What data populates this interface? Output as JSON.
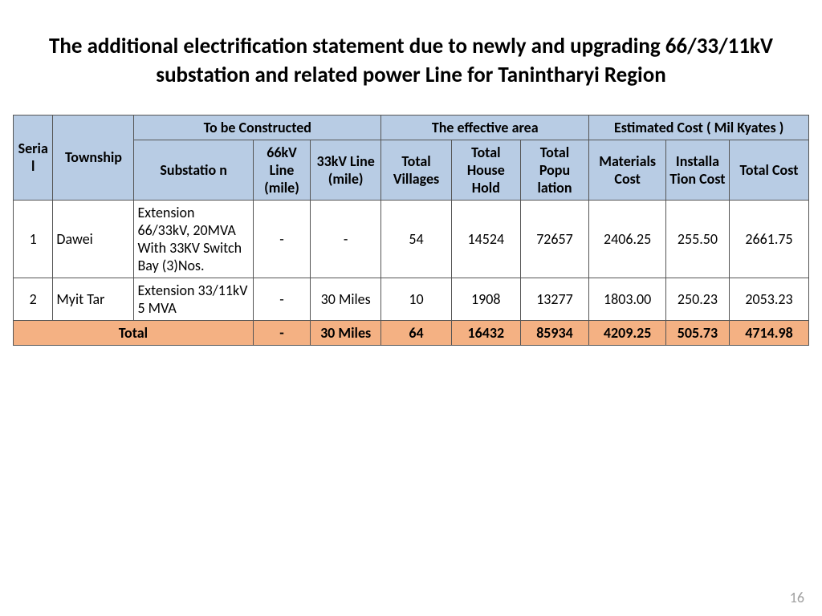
{
  "title": "The additional electrification statement due to newly and upgrading 66/33/11kV substation and related power Line for Tanintharyi Region",
  "page_number": "16",
  "colors": {
    "header_bg": "#b8cce4",
    "total_bg": "#f4b183",
    "border": "#555555",
    "text": "#000000",
    "pagenum": "#a0a0a0"
  },
  "headers": {
    "serial": "Serial",
    "township": "Township",
    "to_be_constructed": "To be Constructed",
    "effective_area": "The effective area",
    "estimated_cost": "Estimated Cost ( Mil Kyates )",
    "substation": "Substatio n",
    "kv66": "66kV Line (mile)",
    "kv33": "33kV Line (mile)",
    "villages": "Total Villages",
    "household": "Total House Hold",
    "population": "Total Popu lation",
    "materials": "Materials Cost",
    "installation": "Installa Tion Cost",
    "total_cost": "Total Cost"
  },
  "rows": [
    {
      "serial": "1",
      "township": "Dawei",
      "substation": "Extension 66/33kV, 20MVA With 33KV Switch Bay (3)Nos.",
      "kv66": "-",
      "kv33": "-",
      "villages": "54",
      "household": "14524",
      "population": "72657",
      "materials": "2406.25",
      "installation": "255.50",
      "total_cost": "2661.75"
    },
    {
      "serial": "2",
      "township": "Myit Tar",
      "substation": "Extension 33/11kV 5 MVA",
      "kv66": "-",
      "kv33": "30 Miles",
      "villages": "10",
      "household": "1908",
      "population": "13277",
      "materials": "1803.00",
      "installation": "250.23",
      "total_cost": "2053.23"
    }
  ],
  "total": {
    "label": "Total",
    "kv66": "-",
    "kv33": "30 Miles",
    "villages": "64",
    "household": "16432",
    "population": "85934",
    "materials": "4209.25",
    "installation": "505.73",
    "total_cost": "4714.98"
  }
}
